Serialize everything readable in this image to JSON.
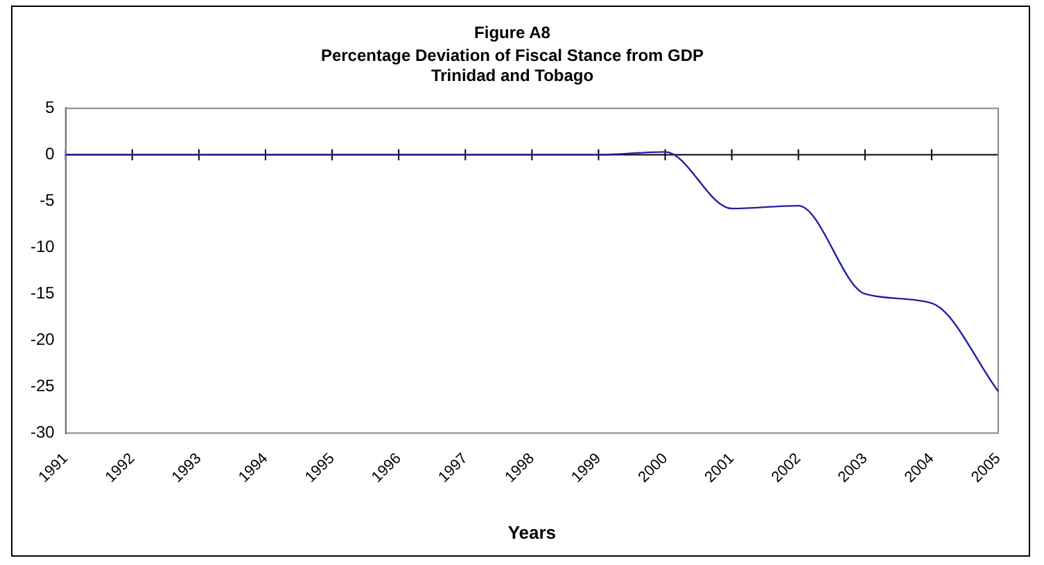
{
  "chart_data": {
    "type": "line",
    "title": "Figure A8",
    "subtitle": "Percentage Deviation of Fiscal Stance from GDP\nTrinidad and Tobago",
    "xlabel": "Years",
    "categories": [
      "1991",
      "1992",
      "1993",
      "1994",
      "1995",
      "1996",
      "1997",
      "1998",
      "1999",
      "2000",
      "2001",
      "2002",
      "2003",
      "2004",
      "2005"
    ],
    "series": [
      {
        "color": "#1f1fa0",
        "values": [
          0,
          0,
          0,
          0,
          0,
          0,
          0,
          0,
          0,
          0.3,
          -5.8,
          -5.5,
          -15,
          -16,
          -25.5
        ]
      }
    ],
    "ylim": [
      -30,
      5
    ],
    "yticks": [
      -30,
      -25,
      -20,
      -15,
      -10,
      -5,
      0,
      5
    ],
    "grid": false,
    "legend": false,
    "marker": "none",
    "line_style": "solid"
  }
}
